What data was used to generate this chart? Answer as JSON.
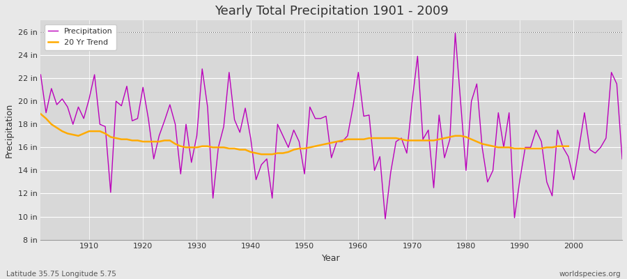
{
  "title": "Yearly Total Precipitation 1901 - 2009",
  "xlabel": "Year",
  "ylabel": "Precipitation",
  "subtitle_lat_lon": "Latitude 35.75 Longitude 5.75",
  "watermark": "worldspecies.org",
  "bg_color": "#e8e8e8",
  "plot_bg_color": "#d8d8d8",
  "precip_color": "#bb00bb",
  "trend_color": "#ffaa00",
  "ylim_min": 8,
  "ylim_max": 27,
  "ytick_labels": [
    "8 in",
    "10 in",
    "12 in",
    "14 in",
    "16 in",
    "18 in",
    "20 in",
    "22 in",
    "24 in",
    "26 in"
  ],
  "ytick_values": [
    8,
    10,
    12,
    14,
    16,
    18,
    20,
    22,
    24,
    26
  ],
  "years": [
    1901,
    1902,
    1903,
    1904,
    1905,
    1906,
    1907,
    1908,
    1909,
    1910,
    1911,
    1912,
    1913,
    1914,
    1915,
    1916,
    1917,
    1918,
    1919,
    1920,
    1921,
    1922,
    1923,
    1924,
    1925,
    1926,
    1927,
    1928,
    1929,
    1930,
    1931,
    1932,
    1933,
    1934,
    1935,
    1936,
    1937,
    1938,
    1939,
    1940,
    1941,
    1942,
    1943,
    1944,
    1945,
    1946,
    1947,
    1948,
    1949,
    1950,
    1951,
    1952,
    1953,
    1954,
    1955,
    1956,
    1957,
    1958,
    1959,
    1960,
    1961,
    1962,
    1963,
    1964,
    1965,
    1966,
    1967,
    1968,
    1969,
    1970,
    1971,
    1972,
    1973,
    1974,
    1975,
    1976,
    1977,
    1978,
    1979,
    1980,
    1981,
    1982,
    1983,
    1984,
    1985,
    1986,
    1987,
    1988,
    1989,
    1990,
    1991,
    1992,
    1993,
    1994,
    1995,
    1996,
    1997,
    1998,
    1999,
    2000,
    2001,
    2002,
    2003,
    2004,
    2005,
    2006,
    2007,
    2008,
    2009
  ],
  "precip": [
    22.3,
    19.0,
    21.1,
    19.7,
    20.2,
    19.5,
    18.0,
    19.5,
    18.5,
    20.2,
    22.3,
    18.0,
    17.8,
    12.1,
    20.0,
    19.6,
    21.3,
    18.3,
    18.5,
    21.2,
    18.5,
    15.0,
    17.0,
    18.3,
    19.7,
    18.0,
    13.7,
    18.0,
    14.7,
    17.0,
    22.8,
    19.5,
    11.6,
    16.0,
    17.8,
    22.5,
    18.4,
    17.3,
    19.4,
    16.8,
    13.2,
    14.5,
    15.0,
    11.6,
    18.0,
    17.0,
    16.0,
    17.5,
    16.5,
    13.7,
    19.5,
    18.5,
    18.5,
    18.7,
    15.1,
    16.5,
    16.5,
    17.0,
    19.5,
    22.5,
    18.7,
    18.8,
    14.0,
    15.2,
    9.8,
    13.8,
    16.5,
    16.8,
    15.5,
    20.0,
    23.9,
    16.7,
    17.5,
    12.5,
    18.8,
    15.1,
    16.7,
    25.9,
    19.9,
    14.0,
    20.0,
    21.5,
    16.0,
    13.0,
    14.0,
    19.0,
    16.0,
    19.0,
    9.9,
    13.2,
    16.0,
    16.0,
    17.5,
    16.5,
    13.0,
    11.8,
    17.5,
    16.0,
    15.2,
    13.2,
    16.0,
    19.0,
    15.8,
    15.5,
    16.0,
    16.8,
    22.5,
    21.5,
    15.0
  ],
  "trend": [
    18.9,
    18.5,
    18.0,
    17.7,
    17.4,
    17.2,
    17.1,
    17.0,
    17.2,
    17.4,
    17.4,
    17.4,
    17.2,
    16.9,
    16.8,
    16.7,
    16.7,
    16.6,
    16.6,
    16.5,
    16.5,
    16.5,
    16.5,
    16.6,
    16.6,
    16.3,
    16.1,
    16.0,
    16.0,
    16.0,
    16.1,
    16.1,
    16.0,
    16.0,
    16.0,
    15.9,
    15.9,
    15.8,
    15.8,
    15.6,
    15.5,
    15.4,
    15.4,
    15.4,
    15.5,
    15.5,
    15.6,
    15.8,
    15.9,
    15.9,
    16.0,
    16.1,
    16.2,
    16.3,
    16.4,
    16.5,
    16.6,
    16.7,
    16.7,
    16.7,
    16.7,
    16.8,
    16.8,
    16.8,
    16.8,
    16.8,
    16.8,
    16.7,
    16.6,
    16.6,
    16.6,
    16.6,
    16.6,
    16.6,
    16.7,
    16.8,
    16.9,
    17.0,
    17.0,
    16.9,
    16.7,
    16.5,
    16.3,
    16.2,
    16.1,
    16.0,
    16.0,
    16.0,
    15.9,
    15.9,
    15.9,
    15.9,
    15.9,
    15.9,
    16.0,
    16.0,
    16.1,
    16.1,
    16.1
  ]
}
